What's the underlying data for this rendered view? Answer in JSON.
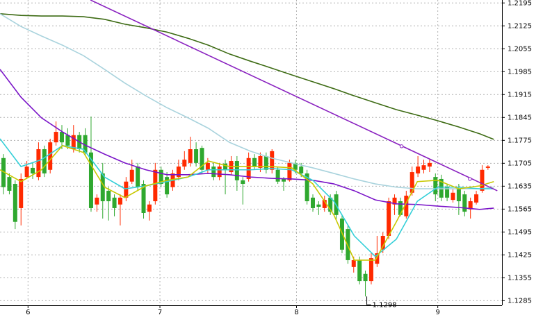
{
  "chart_data": {
    "type": "candlestick",
    "xlim": [
      -0.6,
      85.4
    ],
    "ylim": [
      1.1271,
      1.2204
    ],
    "yticks": [
      1.2195,
      1.2125,
      1.2055,
      1.1985,
      1.1915,
      1.1845,
      1.1775,
      1.1705,
      1.1635,
      1.1565,
      1.1495,
      1.1425,
      1.1355,
      1.1285
    ],
    "xticks": [
      {
        "value": 4.2,
        "label": "6"
      },
      {
        "value": 26.8,
        "label": "7"
      },
      {
        "value": 50.2,
        "label": "8"
      },
      {
        "value": 74.4,
        "label": "9"
      }
    ],
    "grid": true,
    "up_color": "#ff2a00",
    "down_color": "#2fa82f",
    "open": [
      1.1721,
      1.1663,
      1.1642,
      1.1568,
      1.1663,
      1.1691,
      1.1663,
      1.1748,
      1.1685,
      1.1769,
      1.1801,
      1.1791,
      1.1748,
      1.1791,
      1.1791,
      1.1738,
      1.1579,
      1.1674,
      1.1621,
      1.16,
      1.1579,
      1.16,
      1.1649,
      1.1695,
      1.1642,
      1.1557,
      1.1589,
      1.1685,
      1.1663,
      1.1632,
      1.1663,
      1.1695,
      1.1706,
      1.1748,
      1.1752,
      1.1685,
      1.1695,
      1.1663,
      1.1704,
      1.1678,
      1.1712,
      1.1653,
      1.1657,
      1.1721,
      1.1691,
      1.1727,
      1.1685,
      1.1685,
      1.1657,
      1.1653,
      1.1706,
      1.1695,
      1.1674,
      1.16,
      1.1579,
      1.1568,
      1.16,
      1.161,
      1.1536,
      1.1504,
      1.1388,
      1.1409,
      1.1367,
      1.1345,
      1.1398,
      1.1441,
      1.1483,
      1.1579,
      1.1589,
      1.1543,
      1.1615,
      1.1674,
      1.1685,
      1.1695,
      1.1663,
      1.1657,
      1.1632,
      1.1593,
      1.1627,
      1.161,
      1.1564,
      1.1585,
      1.1621,
      1.1691
    ],
    "high": [
      1.1733,
      1.1674,
      1.1653,
      1.1674,
      1.1712,
      1.1706,
      1.1769,
      1.1759,
      1.178,
      1.1833,
      1.1822,
      1.1812,
      1.1822,
      1.1801,
      1.1812,
      1.1848,
      1.161,
      1.1706,
      1.1632,
      1.161,
      1.161,
      1.1663,
      1.1716,
      1.1706,
      1.1653,
      1.1589,
      1.1706,
      1.1695,
      1.1678,
      1.1685,
      1.1716,
      1.1742,
      1.1786,
      1.1769,
      1.1759,
      1.1721,
      1.1706,
      1.1706,
      1.1716,
      1.1727,
      1.1727,
      1.1663,
      1.1738,
      1.1733,
      1.1738,
      1.1738,
      1.1748,
      1.1695,
      1.1663,
      1.1716,
      1.1716,
      1.1706,
      1.1685,
      1.161,
      1.1589,
      1.1606,
      1.161,
      1.1621,
      1.1547,
      1.1515,
      1.142,
      1.142,
      1.1377,
      1.143,
      1.1483,
      1.1494,
      1.16,
      1.161,
      1.16,
      1.1621,
      1.1695,
      1.1727,
      1.1716,
      1.1716,
      1.1674,
      1.167,
      1.1642,
      1.1627,
      1.1642,
      1.1621,
      1.16,
      1.1621,
      1.1699,
      1.1699
    ],
    "low": [
      1.161,
      1.161,
      1.1504,
      1.1515,
      1.1657,
      1.1657,
      1.1653,
      1.1663,
      1.1674,
      1.1759,
      1.1748,
      1.1748,
      1.1738,
      1.1738,
      1.1727,
      1.1557,
      1.1557,
      1.1536,
      1.153,
      1.1543,
      1.1515,
      1.1589,
      1.1642,
      1.1621,
      1.1536,
      1.153,
      1.1579,
      1.1632,
      1.16,
      1.1621,
      1.1653,
      1.1685,
      1.1695,
      1.1695,
      1.1674,
      1.1674,
      1.1653,
      1.1653,
      1.161,
      1.167,
      1.1621,
      1.1579,
      1.1649,
      1.1685,
      1.1678,
      1.1674,
      1.1674,
      1.1642,
      1.1621,
      1.1649,
      1.1674,
      1.1663,
      1.1579,
      1.1557,
      1.1547,
      1.1557,
      1.1547,
      1.153,
      1.143,
      1.1398,
      1.1371,
      1.1335,
      1.1298,
      1.1335,
      1.1388,
      1.143,
      1.1473,
      1.1547,
      1.1543,
      1.1536,
      1.1606,
      1.1663,
      1.1674,
      1.1678,
      1.1589,
      1.1589,
      1.1589,
      1.1585,
      1.1547,
      1.1543,
      1.1536,
      1.1579,
      1.1615,
      1.1685
    ],
    "close": [
      1.1632,
      1.1621,
      1.1526,
      1.1657,
      1.1695,
      1.1674,
      1.1748,
      1.1674,
      1.1769,
      1.1801,
      1.1769,
      1.1759,
      1.1791,
      1.1748,
      1.1738,
      1.1568,
      1.16,
      1.1589,
      1.1589,
      1.1568,
      1.16,
      1.1649,
      1.1685,
      1.1632,
      1.1553,
      1.1579,
      1.1685,
      1.1642,
      1.161,
      1.1674,
      1.1695,
      1.1716,
      1.1748,
      1.1706,
      1.1685,
      1.1706,
      1.1663,
      1.1695,
      1.1685,
      1.1712,
      1.1653,
      1.1642,
      1.1721,
      1.1695,
      1.1727,
      1.1685,
      1.1742,
      1.1649,
      1.1649,
      1.1706,
      1.1685,
      1.1674,
      1.1589,
      1.1568,
      1.1572,
      1.1593,
      1.1557,
      1.1547,
      1.1441,
      1.1409,
      1.1409,
      1.1345,
      1.1345,
      1.1415,
      1.143,
      1.1483,
      1.1589,
      1.16,
      1.1547,
      1.1606,
      1.1678,
      1.1695,
      1.1699,
      1.1706,
      1.161,
      1.16,
      1.16,
      1.1615,
      1.1589,
      1.1557,
      1.1589,
      1.161,
      1.1685,
      1.1695
    ],
    "lines": [
      {
        "color": "#3d6b14",
        "x": [
          -0.6,
          3.0,
          6.5,
          10.1,
          13.7,
          17.3,
          20.8,
          24.4,
          28.0,
          31.6,
          35.1,
          38.7,
          42.3,
          45.9,
          49.4,
          53.0,
          56.6,
          60.1,
          63.7,
          67.3,
          70.9,
          74.4,
          78.0,
          81.6,
          84.0
        ],
        "values": [
          1.2162,
          1.2157,
          1.2155,
          1.2155,
          1.2153,
          1.2145,
          1.213,
          1.2119,
          1.2106,
          1.2087,
          1.2066,
          1.2039,
          1.2017,
          1.1996,
          1.1975,
          1.1954,
          1.1933,
          1.1911,
          1.189,
          1.1869,
          1.1852,
          1.1835,
          1.1816,
          1.1795,
          1.1778
        ]
      },
      {
        "color": "#a9d3dd",
        "x": [
          -0.6,
          3.0,
          6.5,
          10.1,
          13.7,
          17.3,
          20.8,
          24.4,
          28.0,
          31.6,
          35.1,
          38.7,
          42.3,
          45.9,
          49.4,
          53.0,
          56.6,
          60.1,
          63.7,
          67.3,
          70.9,
          74.4,
          78.0,
          81.6,
          84.0
        ],
        "values": [
          1.2162,
          1.2123,
          1.2094,
          1.2066,
          1.2034,
          1.1992,
          1.195,
          1.1911,
          1.1875,
          1.1844,
          1.1812,
          1.1769,
          1.1742,
          1.1721,
          1.1706,
          1.1691,
          1.1674,
          1.1657,
          1.1642,
          1.1632,
          1.1627,
          1.1627,
          1.1627,
          1.1627,
          1.1632
        ]
      },
      {
        "color": "#7a14c8",
        "x": [
          -0.6,
          3.0,
          6.5,
          10.1,
          13.7,
          17.3,
          20.8,
          24.4,
          28.0,
          31.6,
          35.1,
          38.7,
          42.3,
          45.9,
          49.4,
          53.0,
          56.6,
          60.1,
          63.7,
          67.3,
          70.9,
          74.4,
          78.0,
          81.6,
          84.0
        ],
        "values": [
          1.1992,
          1.1907,
          1.1844,
          1.1801,
          1.1763,
          1.1733,
          1.1706,
          1.1685,
          1.167,
          1.167,
          1.1674,
          1.167,
          1.1663,
          1.1659,
          1.1657,
          1.1653,
          1.1642,
          1.1621,
          1.1593,
          1.1581,
          1.1579,
          1.1574,
          1.157,
          1.1564,
          1.1568
        ]
      },
      {
        "color": "#33cfd8",
        "x": [
          -0.6,
          3.0,
          6.5,
          10.1,
          13.7,
          17.3,
          20.8,
          24.4,
          28.0,
          31.6,
          35.1,
          38.7,
          42.3,
          45.9,
          49.4,
          53.0,
          56.6,
          60.1,
          63.7,
          67.3,
          70.9,
          74.4,
          78.0,
          81.6,
          84.0
        ],
        "values": [
          1.178,
          1.1695,
          1.1716,
          1.1759,
          1.1748,
          1.1663,
          1.1627,
          1.1636,
          1.1649,
          1.1663,
          1.1685,
          1.1685,
          1.1685,
          1.1689,
          1.1685,
          1.1653,
          1.1589,
          1.1483,
          1.142,
          1.1473,
          1.1589,
          1.1632,
          1.1632,
          1.1627,
          1.1627
        ]
      },
      {
        "color": "#c8c800",
        "x": [
          -0.6,
          3.0,
          6.5,
          10.1,
          13.7,
          17.3,
          20.8,
          24.4,
          28.0,
          31.6,
          35.1,
          38.7,
          42.3,
          45.9,
          49.4,
          53.0,
          56.6,
          60.1,
          63.7,
          67.3,
          70.9,
          74.4,
          78.0,
          81.6,
          84.0
        ],
        "values": [
          1.1685,
          1.1649,
          1.1685,
          1.1759,
          1.1738,
          1.1632,
          1.16,
          1.1636,
          1.1653,
          1.1663,
          1.1712,
          1.1695,
          1.1695,
          1.1695,
          1.1691,
          1.1642,
          1.1547,
          1.1409,
          1.1409,
          1.1526,
          1.1649,
          1.1653,
          1.1627,
          1.1636,
          1.1649
        ]
      }
    ],
    "trend": {
      "color": "#8a22c0",
      "x": [
        14.9,
        84.6
      ],
      "values": [
        1.2204,
        1.1621
      ],
      "points": {
        "x": [
          68.2,
          79.9
        ],
        "values": [
          1.1757,
          1.1657
        ]
      }
    },
    "annotation": "1.1298"
  }
}
